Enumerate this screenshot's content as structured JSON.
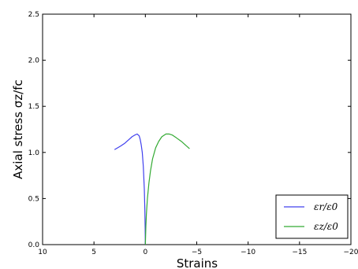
{
  "chart_data": {
    "type": "line",
    "title": "",
    "xlabel": "Strains",
    "ylabel": "Axial stress  σz/fc",
    "xlim": [
      10,
      -20
    ],
    "ylim": [
      0,
      2.5
    ],
    "x_ticks": [
      10,
      5,
      0,
      -5,
      -10,
      -15,
      -20
    ],
    "x_tick_labels": [
      "10",
      "5",
      "0",
      "−5",
      "−10",
      "−15",
      "−20"
    ],
    "y_ticks": [
      0.0,
      0.5,
      1.0,
      1.5,
      2.0,
      2.5
    ],
    "y_tick_labels": [
      "0.0",
      "0.5",
      "1.0",
      "1.5",
      "2.0",
      "2.5"
    ],
    "grid": false,
    "legend_position": "lower-right",
    "colors": {
      "series_1": "#4040ee",
      "series_2": "#33aa33"
    },
    "series": [
      {
        "name": "εr/ε0",
        "color": "#4040ee",
        "x": [
          0,
          0.02,
          0.05,
          0.1,
          0.2,
          0.3,
          0.4,
          0.5,
          0.6,
          0.8,
          1.0,
          1.3,
          1.6,
          2.0,
          2.4,
          3.0
        ],
        "y": [
          0.0,
          0.18,
          0.38,
          0.6,
          0.85,
          1.0,
          1.08,
          1.14,
          1.18,
          1.2,
          1.19,
          1.17,
          1.14,
          1.1,
          1.07,
          1.03
        ]
      },
      {
        "name": "εz/ε0",
        "color": "#33aa33",
        "x": [
          0,
          -0.05,
          -0.1,
          -0.2,
          -0.35,
          -0.5,
          -0.7,
          -1.0,
          -1.3,
          -1.6,
          -2.0,
          -2.3,
          -2.6,
          -3.0,
          -3.5,
          -4.0,
          -4.3
        ],
        "y": [
          0.0,
          0.2,
          0.33,
          0.5,
          0.67,
          0.8,
          0.93,
          1.05,
          1.12,
          1.17,
          1.2,
          1.2,
          1.19,
          1.16,
          1.12,
          1.07,
          1.04
        ]
      }
    ]
  }
}
